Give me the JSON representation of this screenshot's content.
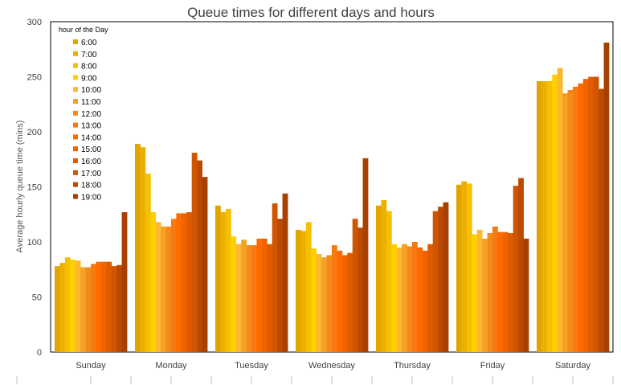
{
  "chart_data": {
    "type": "bar",
    "title": "Queue times for different days and hours",
    "xlabel": "",
    "ylabel": "Average hourly queue time (mins)",
    "ylim": [
      0,
      300
    ],
    "yticks": [
      0,
      50,
      100,
      150,
      200,
      250,
      300
    ],
    "grid": false,
    "legend_title": "hour of the Day",
    "legend_position": "top-left",
    "categories": [
      "Sunday",
      "Monday",
      "Tuesday",
      "Wednesday",
      "Thursday",
      "Friday",
      "Saturday"
    ],
    "series": [
      {
        "name": "6:00",
        "color": "#E2A500",
        "values": [
          78,
          189,
          133,
          111,
          133,
          152,
          246
        ]
      },
      {
        "name": "7:00",
        "color": "#EDB000",
        "values": [
          81,
          186,
          127,
          110,
          138,
          155,
          246
        ]
      },
      {
        "name": "8:00",
        "color": "#F5C000",
        "values": [
          86,
          162,
          130,
          118,
          128,
          153,
          246
        ]
      },
      {
        "name": "9:00",
        "color": "#FFD000",
        "values": [
          84,
          127,
          105,
          94,
          98,
          107,
          252
        ]
      },
      {
        "name": "10:00",
        "color": "#FBB830",
        "values": [
          83,
          118,
          98,
          89,
          95,
          111,
          258
        ]
      },
      {
        "name": "11:00",
        "color": "#F6A125",
        "values": [
          77,
          114,
          102,
          86,
          98,
          103,
          235
        ]
      },
      {
        "name": "12:00",
        "color": "#F38B1C",
        "values": [
          77,
          114,
          97,
          88,
          96,
          108,
          238
        ]
      },
      {
        "name": "13:00",
        "color": "#F77A0E",
        "values": [
          80,
          121,
          97,
          97,
          100,
          114,
          241
        ]
      },
      {
        "name": "14:00",
        "color": "#FF6A00",
        "values": [
          82,
          126,
          103,
          92,
          95,
          109,
          244
        ]
      },
      {
        "name": "15:00",
        "color": "#F06400",
        "values": [
          82,
          126,
          103,
          88,
          92,
          109,
          248
        ]
      },
      {
        "name": "16:00",
        "color": "#E05A00",
        "values": [
          82,
          127,
          98,
          90,
          98,
          108,
          250
        ]
      },
      {
        "name": "17:00",
        "color": "#CF5500",
        "values": [
          78,
          181,
          135,
          121,
          128,
          151,
          250
        ]
      },
      {
        "name": "18:00",
        "color": "#BB4A00",
        "values": [
          79,
          174,
          121,
          113,
          132,
          158,
          239
        ]
      },
      {
        "name": "19:00",
        "color": "#A74000",
        "values": [
          127,
          159,
          144,
          176,
          136,
          103,
          281
        ]
      }
    ]
  }
}
